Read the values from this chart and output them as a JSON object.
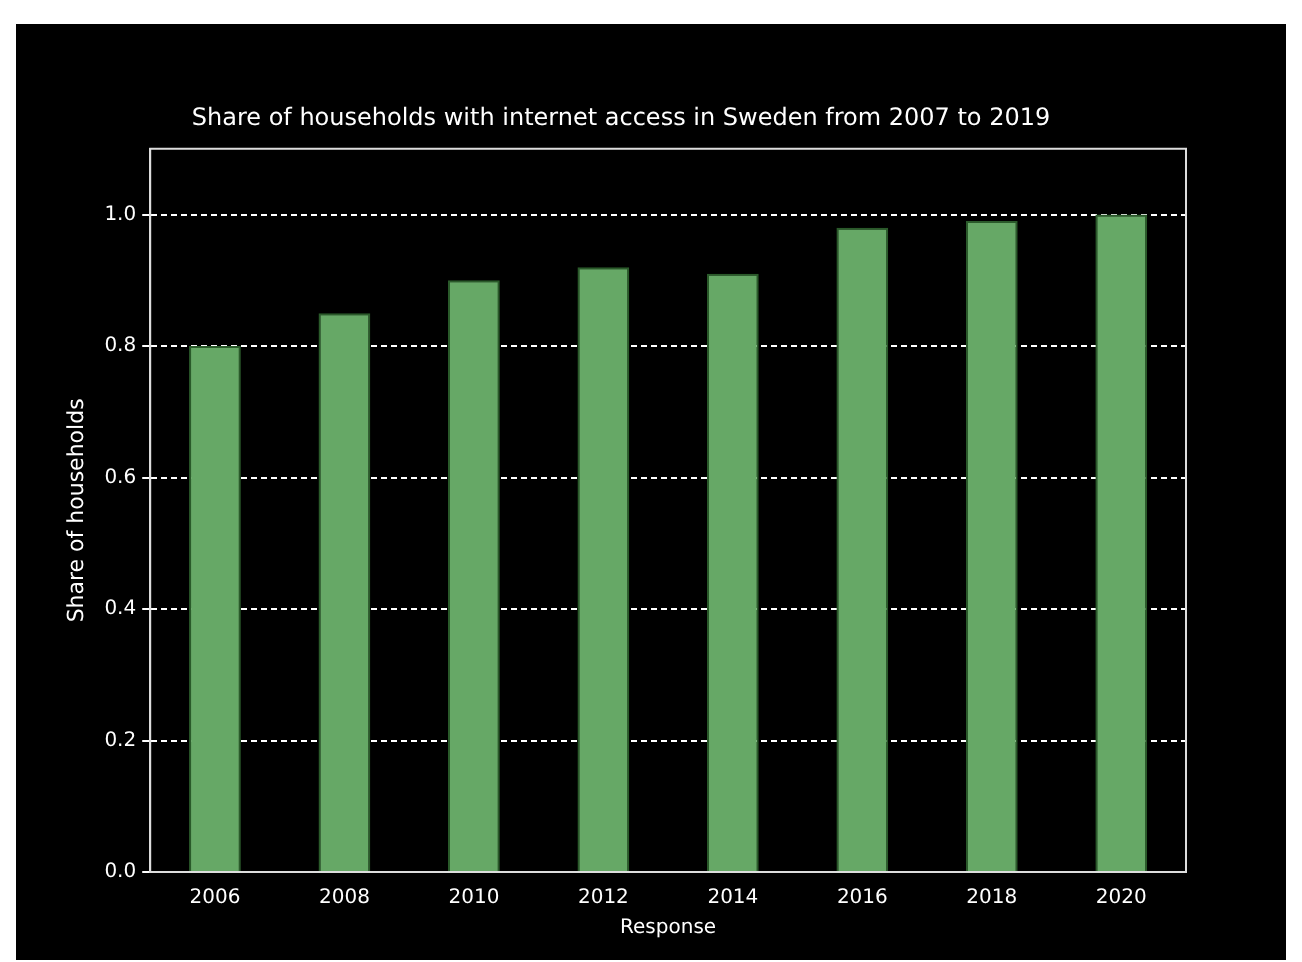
{
  "chart_data": {
    "type": "bar",
    "title": "Share of households with internet access in Sweden from 2007 to 2019",
    "xlabel": "Response",
    "ylabel": "Share of households",
    "categories": [
      "2006",
      "2008",
      "2010",
      "2012",
      "2014",
      "2016",
      "2018",
      "2020"
    ],
    "values": [
      0.8,
      0.85,
      0.9,
      0.92,
      0.91,
      0.98,
      0.99,
      1.0
    ],
    "color": "#66a866",
    "ylim": [
      0,
      1.1
    ],
    "yticks": [
      {
        "value": 0,
        "label": "0.0"
      },
      {
        "value": 0.2,
        "label": "0.2"
      },
      {
        "value": 0.4,
        "label": "0.4"
      },
      {
        "value": 0.6,
        "label": "0.6"
      },
      {
        "value": 0.8,
        "label": "0.8"
      },
      {
        "value": 1,
        "label": "1.0"
      }
    ],
    "grid": "y",
    "line_style": "dashed"
  }
}
